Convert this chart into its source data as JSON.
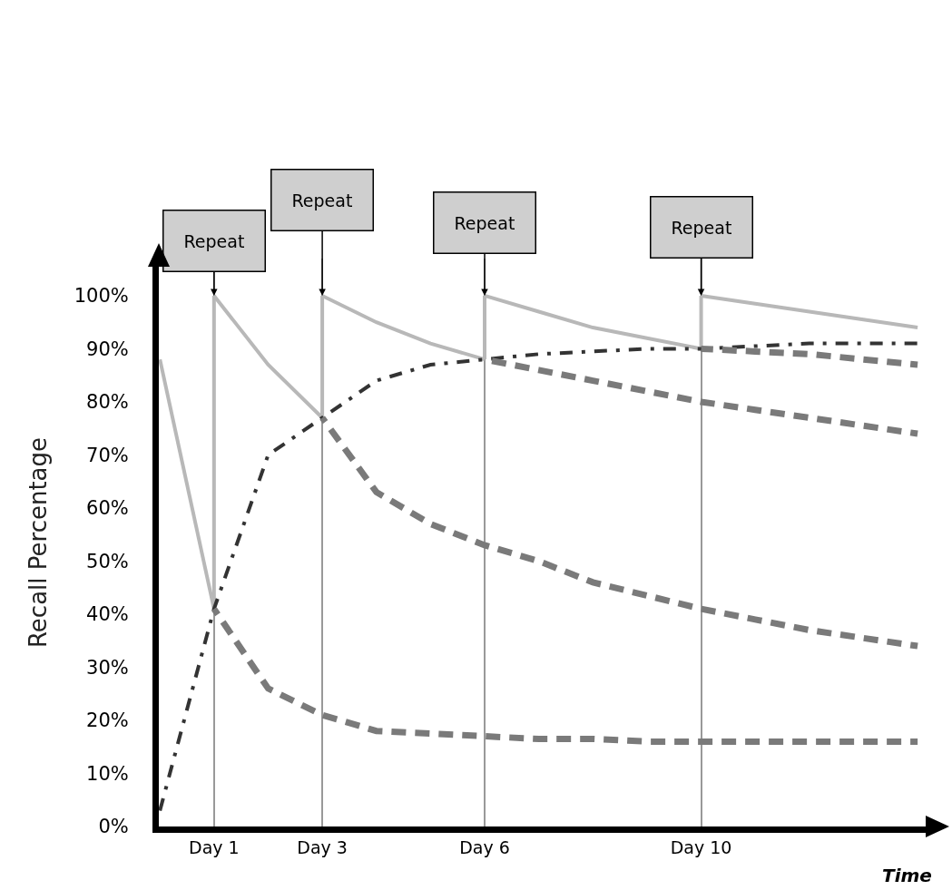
{
  "chart_data": {
    "type": "line",
    "ylabel": "Recall Percentage",
    "xlabel": "Time",
    "ylim": [
      0,
      107
    ],
    "categories": [
      null,
      "Day 1",
      null,
      "Day 3",
      null,
      null,
      "Day 6",
      null,
      null,
      null,
      "Day 10",
      null,
      null,
      null,
      null
    ],
    "yticks": [
      {
        "value": 0,
        "label": "0%"
      },
      {
        "value": 10,
        "label": "10%"
      },
      {
        "value": 20,
        "label": "20%"
      },
      {
        "value": 30,
        "label": "30%"
      },
      {
        "value": 40,
        "label": "40%"
      },
      {
        "value": 50,
        "label": "50%"
      },
      {
        "value": 60,
        "label": "60%"
      },
      {
        "value": 70,
        "label": "70%"
      },
      {
        "value": 80,
        "label": "80%"
      },
      {
        "value": 90,
        "label": "90%"
      },
      {
        "value": 100,
        "label": "100%"
      }
    ],
    "grid": "x",
    "marker": "none",
    "series": [
      {
        "color": "#b8b8b8",
        "line_style": "solid",
        "values": [
          88,
          41,
          null,
          null,
          null,
          null,
          null,
          null,
          null,
          null,
          null,
          null,
          null,
          null,
          null
        ]
      },
      {
        "color": "#b8b8b8",
        "line_style": "solid",
        "x": [
          "Day 1",
          "Day 1"
        ],
        "values": [
          41,
          100
        ]
      },
      {
        "color": "#b8b8b8",
        "line_style": "solid",
        "values": [
          null,
          100,
          87,
          77,
          null,
          null,
          null,
          null,
          null,
          null,
          null,
          null,
          null,
          null,
          null
        ]
      },
      {
        "color": "#b8b8b8",
        "line_style": "solid",
        "x": [
          "Day 3",
          "Day 3"
        ],
        "values": [
          77,
          100
        ]
      },
      {
        "color": "#b8b8b8",
        "line_style": "solid",
        "values": [
          null,
          null,
          null,
          100,
          95,
          91,
          88,
          null,
          null,
          null,
          null,
          null,
          null,
          null,
          null
        ]
      },
      {
        "color": "#b8b8b8",
        "line_style": "solid",
        "x": [
          "Day 6",
          "Day 6"
        ],
        "values": [
          88,
          100
        ]
      },
      {
        "color": "#b8b8b8",
        "line_style": "solid",
        "values": [
          null,
          null,
          null,
          null,
          null,
          null,
          100,
          97,
          94,
          92,
          90,
          null,
          null,
          null,
          null
        ]
      },
      {
        "color": "#b8b8b8",
        "line_style": "solid",
        "x": [
          "Day 10",
          "Day 10"
        ],
        "values": [
          90,
          100
        ]
      },
      {
        "color": "#b8b8b8",
        "line_style": "solid",
        "values": [
          null,
          null,
          null,
          null,
          null,
          null,
          null,
          null,
          null,
          null,
          100,
          98.5,
          97,
          95.5,
          94
        ]
      },
      {
        "color": "#333333",
        "line_style": "dashdot",
        "values": [
          3,
          41,
          70,
          77,
          84,
          87,
          88,
          89,
          89.5,
          90,
          90,
          90.5,
          91,
          91,
          91
        ]
      },
      {
        "color": "#7a7a7a",
        "line_style": "dashed",
        "values": [
          null,
          41,
          26,
          21,
          18,
          17.5,
          17,
          16.5,
          16.5,
          16,
          16,
          16,
          16,
          16,
          16
        ]
      },
      {
        "color": "#7a7a7a",
        "line_style": "dashed",
        "values": [
          null,
          null,
          null,
          77,
          63,
          57,
          53,
          50,
          46,
          43.5,
          41,
          39,
          37,
          35.5,
          34
        ]
      },
      {
        "color": "#7a7a7a",
        "line_style": "dashed",
        "values": [
          null,
          null,
          null,
          null,
          null,
          null,
          88,
          86,
          84,
          82,
          80,
          78.5,
          77,
          75.5,
          74
        ]
      },
      {
        "color": "#7a7a7a",
        "line_style": "dashed",
        "values": [
          null,
          null,
          null,
          null,
          null,
          null,
          null,
          null,
          null,
          null,
          90,
          89.5,
          89,
          88,
          87
        ]
      }
    ],
    "annotations": [
      {
        "text": "Repeat",
        "x": "Day 1",
        "y": 100
      },
      {
        "text": "Repeat",
        "x": "Day 3",
        "y": 100
      },
      {
        "text": "Repeat",
        "x": "Day 6",
        "y": 100
      },
      {
        "text": "Repeat",
        "x": "Day 10",
        "y": 100
      }
    ]
  }
}
